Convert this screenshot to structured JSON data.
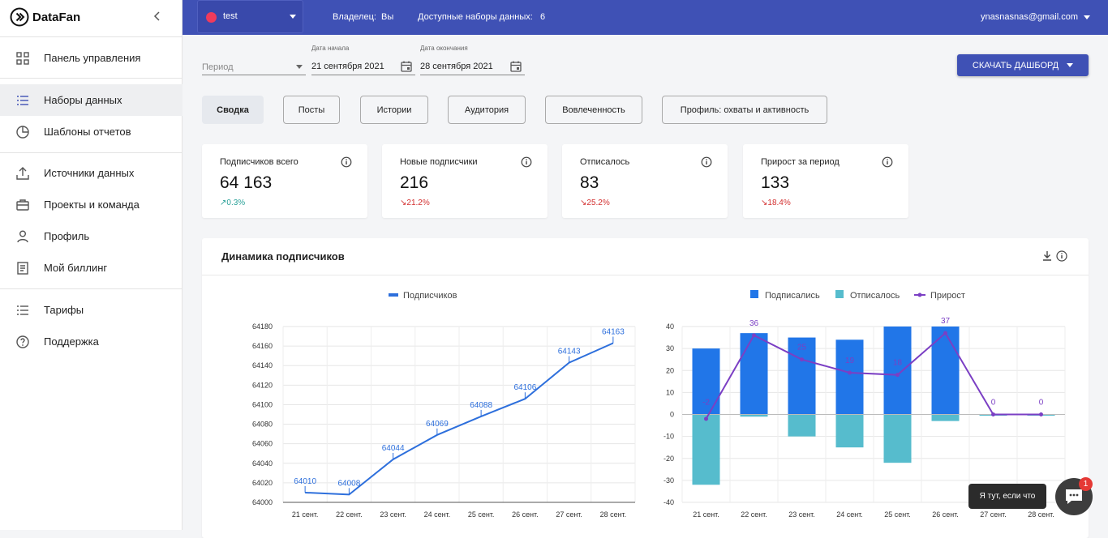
{
  "app": {
    "name": "DataFan"
  },
  "sidebar": {
    "items": [
      {
        "label": "Панель управления",
        "icon": "dashboard-grid-icon"
      },
      {
        "label": "Наборы данных",
        "icon": "list-icon",
        "active": true
      },
      {
        "label": "Шаблоны отчетов",
        "icon": "pie-chart-icon"
      },
      {
        "label": "Источники данных",
        "icon": "upload-icon"
      },
      {
        "label": "Проекты и команда",
        "icon": "briefcase-icon"
      },
      {
        "label": "Профиль",
        "icon": "person-icon"
      },
      {
        "label": "Мой биллинг",
        "icon": "receipt-icon"
      },
      {
        "label": "Тарифы",
        "icon": "list-icon"
      },
      {
        "label": "Поддержка",
        "icon": "help-circle-icon"
      }
    ]
  },
  "topbar": {
    "dataset_name": "test",
    "dataset_color": "#ef3b5c",
    "owner_label": "Владелец:",
    "owner_value": "Вы",
    "available_label": "Доступные наборы данных:",
    "available_value": "6",
    "user_email": "ynasnasnas@gmail.com"
  },
  "filters": {
    "period_placeholder": "Период",
    "start_label": "Дата начала",
    "start_value": "21 сентября 2021",
    "end_label": "Дата окончания",
    "end_value": "28 сентября 2021",
    "download_label": "СКАЧАТЬ ДАШБОРД"
  },
  "tabs": [
    {
      "label": "Сводка",
      "active": true
    },
    {
      "label": "Посты"
    },
    {
      "label": "Истории"
    },
    {
      "label": "Аудитория"
    },
    {
      "label": "Вовлеченность"
    },
    {
      "label": "Профиль: охваты и активность"
    }
  ],
  "kpis": [
    {
      "title": "Подписчиков всего",
      "value": "64 163",
      "delta": "0.3%",
      "direction": "up"
    },
    {
      "title": "Новые подписчики",
      "value": "216",
      "delta": "21.2%",
      "direction": "down"
    },
    {
      "title": "Отписалось",
      "value": "83",
      "delta": "25.2%",
      "direction": "down"
    },
    {
      "title": "Прирост за период",
      "value": "133",
      "delta": "18.4%",
      "direction": "down"
    }
  ],
  "panel": {
    "title": "Динамика подписчиков"
  },
  "chat": {
    "tooltip": "Я тут, если что",
    "badge": "1"
  },
  "colors": {
    "brand": "#3f51b5",
    "line": "#2d6fdc",
    "subscribed": "#2176e8",
    "unsubscribed": "#56bccd",
    "growth": "#7b3fc4"
  },
  "chart_data": [
    {
      "type": "line",
      "categories": [
        "21 сент.",
        "22 сент.",
        "23 сент.",
        "24 сент.",
        "25 сент.",
        "26 сент.",
        "27 сент.",
        "28 сент."
      ],
      "series": [
        {
          "name": "Подписчиков",
          "values": [
            64010,
            64008,
            64044,
            64069,
            64088,
            64106,
            64143,
            64163
          ]
        }
      ],
      "ylim": [
        64000,
        64180
      ],
      "yticks": [
        64000,
        64020,
        64040,
        64060,
        64080,
        64100,
        64120,
        64140,
        64160,
        64180
      ],
      "grid": true,
      "legend": "top-center"
    },
    {
      "type": "bar",
      "categories": [
        "21 сент.",
        "22 сент.",
        "23 сент.",
        "24 сент.",
        "25 сент.",
        "26 сент.",
        "27 сент.",
        "28 сент."
      ],
      "series": [
        {
          "name": "Подписались",
          "kind": "bar",
          "values": [
            30,
            37,
            35,
            34,
            40,
            40,
            0,
            0
          ]
        },
        {
          "name": "Отписалось",
          "kind": "bar",
          "values": [
            -32,
            -1,
            -10,
            -15,
            -22,
            -3,
            0,
            0
          ]
        },
        {
          "name": "Прирост",
          "kind": "line",
          "values": [
            -2,
            36,
            25,
            19,
            18,
            37,
            0,
            0
          ],
          "labels": [
            "-2",
            "36",
            "25",
            "19",
            "18",
            "37",
            "0",
            "0"
          ]
        }
      ],
      "ylim": [
        -40,
        40
      ],
      "yticks": [
        -40,
        -30,
        -20,
        -10,
        0,
        10,
        20,
        30,
        40
      ],
      "grid": true,
      "legend": "top-center"
    }
  ]
}
